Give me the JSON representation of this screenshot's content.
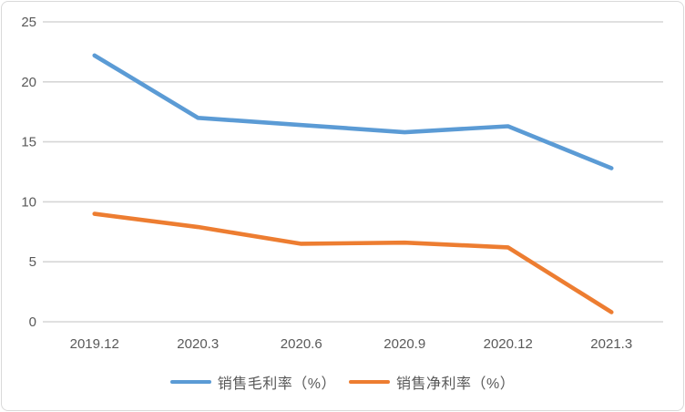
{
  "chart_data": {
    "type": "line",
    "title": "",
    "xlabel": "",
    "ylabel": "",
    "categories": [
      "2019.12",
      "2020.3",
      "2020.6",
      "2020.9",
      "2020.12",
      "2021.3"
    ],
    "series": [
      {
        "name": "销售毛利率（%）",
        "color": "#5B9BD5",
        "values": [
          22.2,
          17.0,
          16.4,
          15.8,
          16.3,
          12.8
        ]
      },
      {
        "name": "销售净利率（%）",
        "color": "#ED7D31",
        "values": [
          9.0,
          7.9,
          6.5,
          6.6,
          6.2,
          0.8
        ]
      }
    ],
    "ylim": [
      0,
      25
    ],
    "yticks": [
      0,
      5,
      10,
      15,
      20,
      25
    ],
    "grid": true,
    "legend_position": "bottom"
  },
  "style": {
    "grid_color": "#d6d6d6",
    "axis_label_color": "#595959",
    "border_color": "#d9d9d9",
    "background": "#ffffff",
    "tick_font_size": 15,
    "category_font_size": 15
  }
}
